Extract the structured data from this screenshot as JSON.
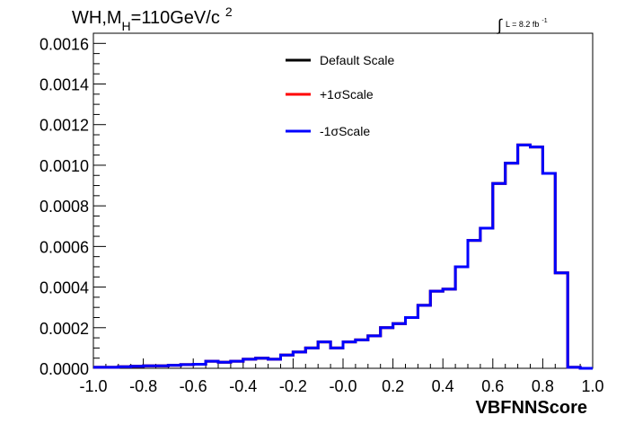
{
  "chart_data": {
    "type": "line",
    "title": {
      "base": "WH,M",
      "subscript": "H",
      "rest": "=110GeV/c",
      "superscript": "2"
    },
    "lumi": {
      "integral": "∫",
      "text": "L = 8.2 fb",
      "superscript": "-1"
    },
    "xlabel": "VBFNNScore",
    "ylabel": "",
    "xlim": [
      -1.0,
      1.0
    ],
    "ylim": [
      0.0,
      0.00165
    ],
    "x_ticks": [
      "-1.0",
      "-0.8",
      "-0.6",
      "-0.4",
      "-0.2",
      "-0.0",
      "0.2",
      "0.4",
      "0.6",
      "0.8",
      "1.0"
    ],
    "y_ticks": [
      "0.0000",
      "0.0002",
      "0.0004",
      "0.0006",
      "0.0008",
      "0.0010",
      "0.0012",
      "0.0014",
      "0.0016"
    ],
    "legend_position": "top-center",
    "bin_edges": [
      -1.0,
      -0.95,
      -0.9,
      -0.85,
      -0.8,
      -0.75,
      -0.7,
      -0.65,
      -0.6,
      -0.55,
      -0.5,
      -0.45,
      -0.4,
      -0.35,
      -0.3,
      -0.25,
      -0.2,
      -0.15,
      -0.1,
      -0.05,
      0.0,
      0.05,
      0.1,
      0.15,
      0.2,
      0.25,
      0.3,
      0.35,
      0.4,
      0.45,
      0.5,
      0.55,
      0.6,
      0.65,
      0.7,
      0.75,
      0.8,
      0.85,
      0.9,
      0.95,
      1.0
    ],
    "series": [
      {
        "name": "Default Scale",
        "color": "#000000",
        "values": [
          5e-06,
          5e-06,
          8e-06,
          1e-05,
          1.2e-05,
          1.2e-05,
          1.5e-05,
          1.8e-05,
          2e-05,
          3.5e-05,
          3e-05,
          3.5e-05,
          4.5e-05,
          5e-05,
          4.5e-05,
          6.5e-05,
          8e-05,
          0.0001,
          0.00013,
          0.0001,
          0.00013,
          0.00014,
          0.00016,
          0.0002,
          0.00022,
          0.00025,
          0.00031,
          0.00038,
          0.00039,
          0.0005,
          0.00063,
          0.00069,
          0.00091,
          0.00101,
          0.0011,
          0.00109,
          0.00096,
          0.00047,
          5e-06,
          0.0
        ]
      },
      {
        "name": "+1σScale",
        "color": "#ff0000",
        "values": [
          5e-06,
          5e-06,
          8e-06,
          1e-05,
          1.2e-05,
          1.2e-05,
          1.5e-05,
          1.8e-05,
          2e-05,
          3.5e-05,
          3e-05,
          3.5e-05,
          4.5e-05,
          5e-05,
          4.5e-05,
          6.5e-05,
          8e-05,
          0.0001,
          0.00013,
          0.0001,
          0.00013,
          0.00014,
          0.00016,
          0.0002,
          0.00022,
          0.00025,
          0.00031,
          0.00038,
          0.00039,
          0.0005,
          0.00063,
          0.00069,
          0.00091,
          0.00101,
          0.0011,
          0.00109,
          0.00096,
          0.00047,
          5e-06,
          0.0
        ]
      },
      {
        "name": "-1σScale",
        "color": "#0000ff",
        "values": [
          5e-06,
          5e-06,
          8e-06,
          1e-05,
          1.2e-05,
          1.2e-05,
          1.5e-05,
          1.8e-05,
          2e-05,
          3.5e-05,
          3e-05,
          3.5e-05,
          4.5e-05,
          5e-05,
          4.5e-05,
          6.5e-05,
          8e-05,
          0.0001,
          0.00013,
          0.0001,
          0.00013,
          0.00014,
          0.00016,
          0.0002,
          0.00022,
          0.00025,
          0.00031,
          0.00038,
          0.00039,
          0.0005,
          0.00063,
          0.00069,
          0.00091,
          0.00101,
          0.0011,
          0.00109,
          0.00096,
          0.00047,
          5e-06,
          0.0
        ]
      }
    ]
  }
}
